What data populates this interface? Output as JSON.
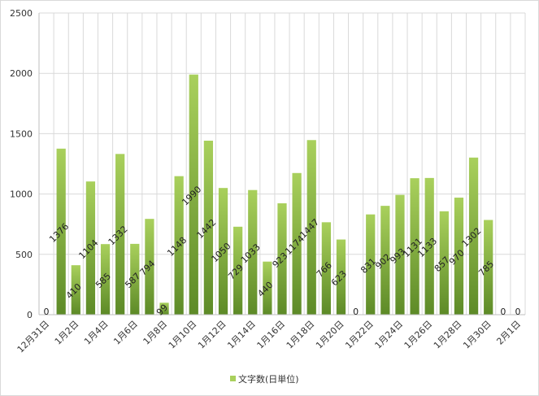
{
  "chart_data": {
    "type": "bar",
    "categories": [
      "12月31日",
      "1月1日",
      "1月2日",
      "1月3日",
      "1月4日",
      "1月5日",
      "1月6日",
      "1月7日",
      "1月8日",
      "1月9日",
      "1月10日",
      "1月11日",
      "1月12日",
      "1月13日",
      "1月14日",
      "1月15日",
      "1月16日",
      "1月17日",
      "1月18日",
      "1月19日",
      "1月20日",
      "1月21日",
      "1月22日",
      "1月23日",
      "1月24日",
      "1月25日",
      "1月26日",
      "1月27日",
      "1月28日",
      "1月29日",
      "1月30日",
      "1月31日",
      "2月1日"
    ],
    "x_tick_labels": [
      "12月31日",
      "1月2日",
      "1月4日",
      "1月6日",
      "1月8日",
      "1月10日",
      "1月12日",
      "1月14日",
      "1月16日",
      "1月18日",
      "1月20日",
      "1月22日",
      "1月24日",
      "1月26日",
      "1月28日",
      "1月30日",
      "2月1日"
    ],
    "series": [
      {
        "name": "文字数(日単位)",
        "values": [
          0,
          1376,
          410,
          1104,
          585,
          1332,
          587,
          794,
          99,
          1148,
          1990,
          1442,
          1050,
          729,
          1033,
          440,
          923,
          1174,
          1447,
          766,
          623,
          0,
          831,
          902,
          993,
          1131,
          1133,
          857,
          970,
          1302,
          785,
          0,
          0
        ]
      }
    ],
    "data_labels": [
      "0",
      "1376",
      "410",
      "1104",
      "585",
      "1332",
      "587",
      "794",
      "99",
      "1148",
      "1990",
      "1442",
      "1050",
      "729",
      "1033",
      "440",
      "923",
      "1174",
      "1447",
      "766",
      "623",
      "0",
      "831",
      "902",
      "993",
      "1131",
      "1133",
      "857",
      "970",
      "1302",
      "785",
      "0",
      "0"
    ],
    "y_ticks": [
      "0",
      "500",
      "1000",
      "1500",
      "2000",
      "2500"
    ],
    "ylim": [
      0,
      2500
    ],
    "grid": true,
    "legend_position": "bottom",
    "colors": {
      "bar_light": "#a9d05c",
      "bar_dark": "#5d8a27",
      "grid": "#d9d9d9",
      "axis": "#bfbfbf"
    }
  }
}
